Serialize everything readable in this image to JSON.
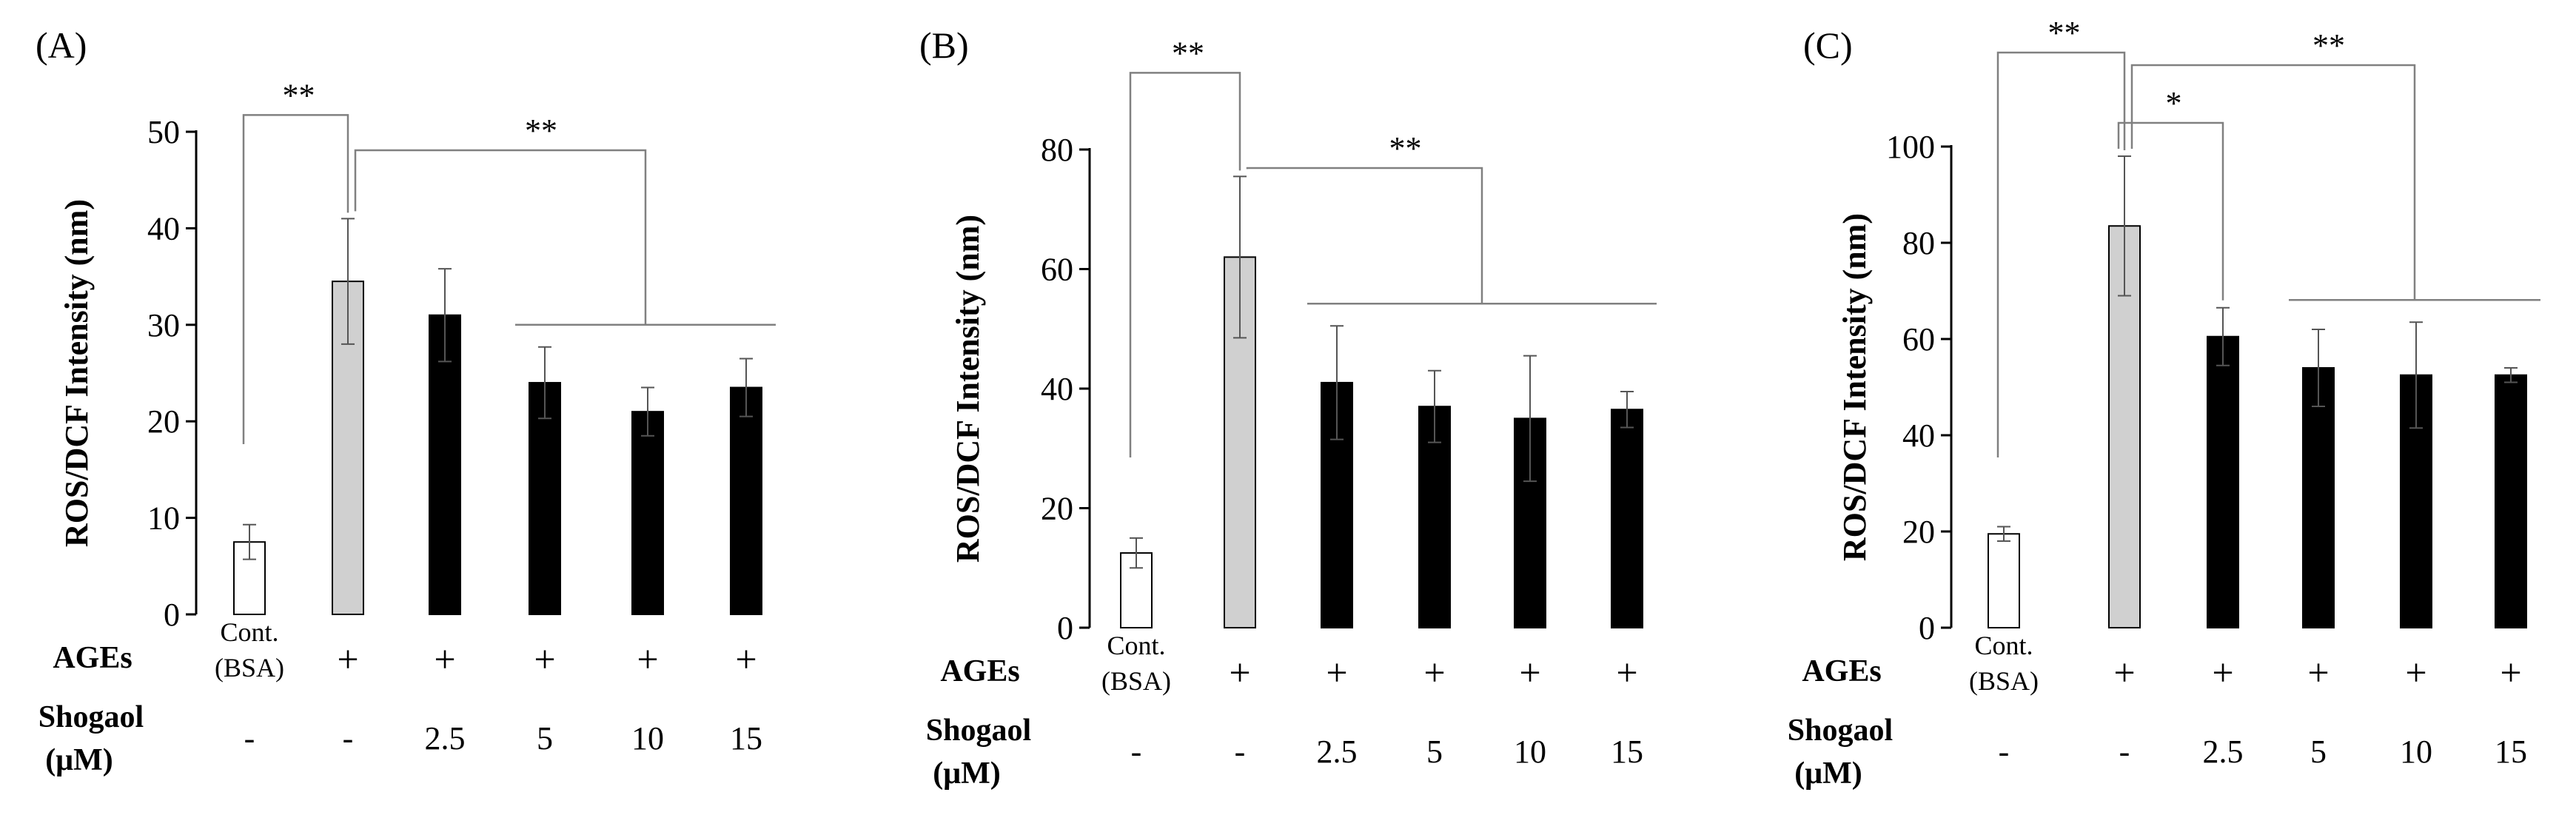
{
  "colors": {
    "control": "#ffffff",
    "ages": "#d0d0d0",
    "shogaol": "#000000",
    "stroke": "#000000",
    "bracket": "#808080"
  },
  "chart_data": [
    {
      "type": "bar",
      "panel_label": "(A)",
      "ylabel": "ROS/DCF Intensity (nm)",
      "ylim": [
        0,
        50
      ],
      "yticks": [
        "0",
        "10",
        "20",
        "30",
        "40",
        "50"
      ],
      "categories": [
        "Cont. (BSA)",
        "AGEs",
        "AGEs + Shogaol 2.5",
        "AGEs + Shogaol 5",
        "AGEs + Shogaol 10",
        "AGEs + Shogaol 15"
      ],
      "values": [
        7.5,
        34.5,
        31,
        24,
        21,
        23.5
      ],
      "errors": [
        1.8,
        6.5,
        4.8,
        3.7,
        2.5,
        3.0
      ],
      "bar_kinds": [
        "control",
        "ages",
        "shogaol",
        "shogaol",
        "shogaol",
        "shogaol"
      ],
      "cont_label_line1": "Cont.",
      "cont_label_line2": "(BSA)",
      "ages_row_label": "AGEs",
      "ages_marks": [
        "+",
        "+",
        "+",
        "+",
        "+"
      ],
      "shogaol_row_label_line1": "Shogaol",
      "shogaol_row_label_line2": "(μM)",
      "shogaol_values": [
        "-",
        "-",
        "2.5",
        "5",
        "10",
        "15"
      ],
      "significance": [
        {
          "label": "**",
          "from": 0,
          "to": 1
        },
        {
          "label": "**",
          "from": 1,
          "to_group": [
            3,
            5
          ]
        }
      ]
    },
    {
      "type": "bar",
      "panel_label": "(B)",
      "ylabel": "ROS/DCF Intensity (nm)",
      "ylim": [
        0,
        80
      ],
      "yticks": [
        "0",
        "20",
        "40",
        "60",
        "80"
      ],
      "categories": [
        "Cont. (BSA)",
        "AGEs",
        "AGEs + Shogaol 2.5",
        "AGEs + Shogaol 5",
        "AGEs + Shogaol 10",
        "AGEs + Shogaol 15"
      ],
      "values": [
        12.5,
        62,
        41,
        37,
        35,
        36.5
      ],
      "errors": [
        2.5,
        13.5,
        9.5,
        6.0,
        10.5,
        3.0
      ],
      "bar_kinds": [
        "control",
        "ages",
        "shogaol",
        "shogaol",
        "shogaol",
        "shogaol"
      ],
      "cont_label_line1": "Cont.",
      "cont_label_line2": "(BSA)",
      "ages_row_label": "AGEs",
      "ages_marks": [
        "+",
        "+",
        "+",
        "+",
        "+"
      ],
      "shogaol_row_label_line1": "Shogaol",
      "shogaol_row_label_line2": "(μM)",
      "shogaol_values": [
        "-",
        "-",
        "2.5",
        "5",
        "10",
        "15"
      ],
      "significance": [
        {
          "label": "**",
          "from": 0,
          "to": 1
        },
        {
          "label": "**",
          "from": 1,
          "to_group": [
            2,
            5
          ]
        }
      ]
    },
    {
      "type": "bar",
      "panel_label": "(C)",
      "ylabel": "ROS/DCF Intensity (nm)",
      "ylim": [
        0,
        100
      ],
      "yticks": [
        "0",
        "20",
        "40",
        "60",
        "80",
        "100"
      ],
      "categories": [
        "Cont. (BSA)",
        "AGEs",
        "AGEs + Shogaol 2.5",
        "AGEs + Shogaol 5",
        "AGEs + Shogaol 10",
        "AGEs + Shogaol 15"
      ],
      "values": [
        19.5,
        83.5,
        60.5,
        54,
        52.5,
        52.5
      ],
      "errors": [
        1.5,
        14.5,
        6.0,
        8.0,
        11.0,
        1.5
      ],
      "bar_kinds": [
        "control",
        "ages",
        "shogaol",
        "shogaol",
        "shogaol",
        "shogaol"
      ],
      "cont_label_line1": "Cont.",
      "cont_label_line2": "(BSA)",
      "ages_row_label": "AGEs",
      "ages_marks": [
        "+",
        "+",
        "+",
        "+",
        "+"
      ],
      "shogaol_row_label_line1": "Shogaol",
      "shogaol_row_label_line2": "(μM)",
      "shogaol_values": [
        "-",
        "-",
        "2.5",
        "5",
        "10",
        "15"
      ],
      "significance": [
        {
          "label": "**",
          "from": 0,
          "to": 1
        },
        {
          "label": "*",
          "from": 1,
          "to": 2
        },
        {
          "label": "**",
          "from": 1,
          "to_group": [
            3,
            5
          ]
        }
      ]
    }
  ]
}
